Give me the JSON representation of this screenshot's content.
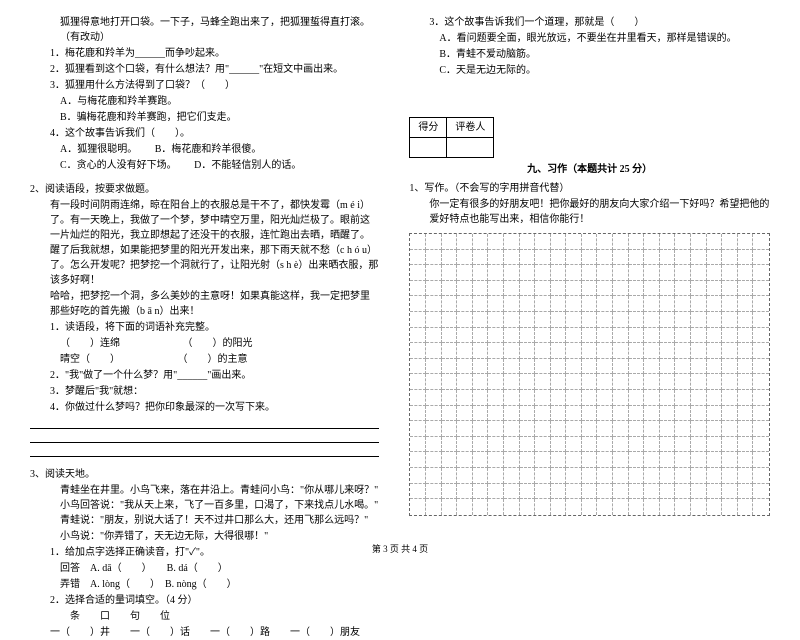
{
  "leftColumn": {
    "intro": "狐狸得意地打开口袋。一下子，马蜂全跑出来了，把狐狸蜇得直打滚。（有改动）",
    "q1": "1．梅花鹿和羚羊为______而争吵起来。",
    "q2": "2．狐狸看到这个口袋，有什么想法？用\"______\"在短文中画出来。",
    "q3": "3．狐狸用什么方法得到了口袋？（　　）",
    "q3a": "A．与梅花鹿和羚羊赛跑。",
    "q3b": "B．骗梅花鹿和羚羊赛跑，把它们支走。",
    "q4": "4．这个故事告诉我们（　　）。",
    "q4a": "A．狐狸很聪明。",
    "q4b": "B．梅花鹿和羚羊很傻。",
    "q4c": "C．贪心的人没有好下场。",
    "q4d": "D．不能轻信别人的话。",
    "p2title": "2、阅读语段，按要求做题。",
    "p2text1": "有一段时间阴雨连绵，晾在阳台上的衣服总是干不了，都快发霉（m é i）了。有一天晚上，我做了一个梦，梦中晴空万里，阳光灿烂极了。眼前这一片灿烂的阳光，我立即想起了还没干的衣服，连忙跑出去晒，晒醒了。醒了后我就想，如果能把梦里的阳光开发出来，那下雨天就不愁（c h ó u）了。怎么开发呢？把梦挖一个洞就行了，让阳光射（s h è）出来晒衣服，那该多好啊！",
    "p2text2": "哈哈，把梦挖一个洞，多么美妙的主意呀！如果真能这样，我一定把梦里那些好吃的首先搬（b ā n）出来！",
    "p2q1": "1．读语段，将下面的词语补充完整。",
    "p2q1a": "（　　）连绵",
    "p2q1b": "（　　）的阳光",
    "p2q1c": "晴空（　　）",
    "p2q1d": "（　　）的主意",
    "p2q2": "2．\"我\"做了一个什么梦？用\"______\"画出来。",
    "p2q3": "3．梦醒后\"我\"就想：",
    "p2q4": "4．你做过什么梦吗？把你印象最深的一次写下来。",
    "p3title": "3、阅读天地。",
    "p3text": "青蛙坐在井里。小鸟飞来，落在井沿上。青蛙问小鸟：\"你从哪儿来呀？\" 小鸟回答说：\"我从天上来，飞了一百多里，口渴了，下来找点儿水喝。\" 青蛙说：\"朋友，别说大话了！天不过井口那么大，还用飞那么远吗？\"",
    "p3text2": "小鸟说：\"你弄错了，天无边无际，大得很哪！\"",
    "p3q1": "1．给加点字选择正确读音，打\"✓\"。",
    "p3q1a": "回答　A. dā（　　）　　B. dá（　　）",
    "p3q1b": "弄错　A. lòng（　　）　B. nòng（　　）",
    "p3q2": "2．选择合适的量词填空。（4 分）",
    "p3q2opts": "条　　口　　句　　位",
    "p3q2fill": "一（　　）井　　一（　　）话　　一（　　）路　　一（　　）朋友"
  },
  "rightColumn": {
    "q3": "3．这个故事告诉我们一个道理，那就是（　　）",
    "q3a": "A．看问题要全面，眼光放远，不要坐在井里看天，那样是错误的。",
    "q3b": "B．青蛙不爱动脑筋。",
    "q3c": "C．天是无边无际的。",
    "scoreLabel1": "得分",
    "scoreLabel2": "评卷人",
    "sectionTitle": "九、习作（本题共计 25 分）",
    "writingTitle": "1、写作。（不会写的字用拼音代替）",
    "writingPrompt": "你一定有很多的好朋友吧！把你最好的朋友向大家介绍一下好吗？希望把他的爱好特点也能写出来，相信你能行！"
  },
  "footer": "第 3 页  共 4 页",
  "grid": {
    "rows": 18,
    "cols": 23
  }
}
